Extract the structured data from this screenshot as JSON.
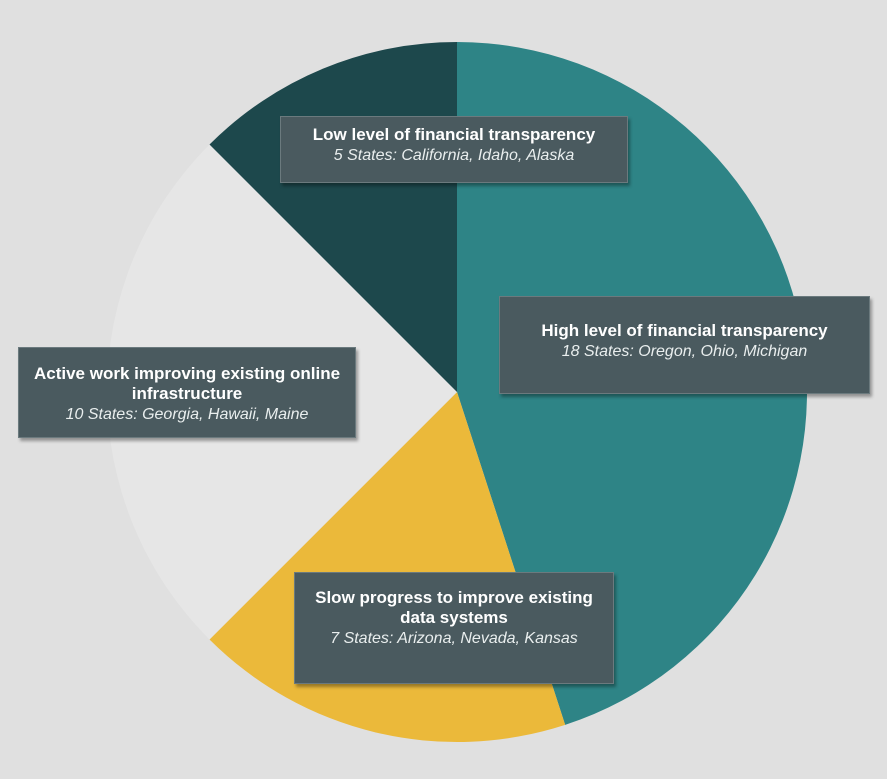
{
  "chart_data": {
    "type": "pie",
    "title": "",
    "slices": [
      {
        "label": "High level of financial transparency",
        "detail": "18 States: Oregon, Ohio, Michigan",
        "value": 18,
        "color": "#2e8486"
      },
      {
        "label": "Slow progress to improve existing data systems",
        "detail": "7 States: Arizona, Nevada, Kansas",
        "value": 7,
        "color": "#ebb93a"
      },
      {
        "label": "Active work improving existing online infrastructure",
        "detail": "10 States: Georgia, Hawaii, Maine",
        "value": 10,
        "color": "#e6e6e6"
      },
      {
        "label": "Low level of financial transparency",
        "detail": "5 States: California, Idaho, Alaska",
        "value": 5,
        "color": "#1d484c"
      }
    ]
  }
}
